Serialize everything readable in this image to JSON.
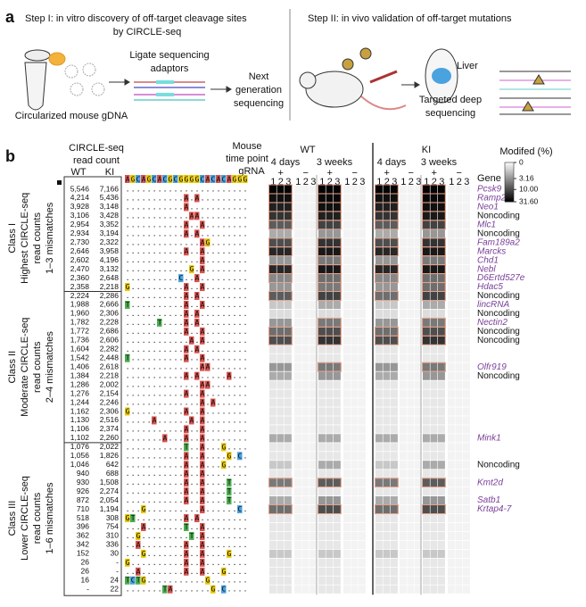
{
  "panel_a": {
    "label": "a",
    "step1_title": "Step I: in vitro discovery of off-target cleavage sites",
    "step1_title2": "by CIRCLE-seq",
    "ligate": "Ligate sequencing",
    "adaptors": "adaptors",
    "ngs1": "Next",
    "ngs2": "generation",
    "ngs3": "sequencing",
    "gdna": "Circularized mouse gDNA",
    "step2_title": "Step II: in vivo validation of off-target mutations",
    "liver": "Liver",
    "deep1": "Targeted deep",
    "deep2": "sequencing"
  },
  "panel_b": {
    "label": "b",
    "count_h1": "CIRCLE-seq",
    "count_h2": "read count",
    "wt": "WT",
    "ki": "KI",
    "mouse_h1": "Mouse",
    "mouse_h2": "time point",
    "grna_h": "gRNA",
    "reference": "AGCAGCACGCGGGGCACACAGGG",
    "gene_h": "Gene",
    "strains": [
      "WT",
      "KI"
    ],
    "timepoints": [
      "4 days",
      "3 weeks",
      "4 days",
      "3 weeks"
    ],
    "signs": [
      "+",
      "−",
      "+",
      "−",
      "+",
      "−",
      "+",
      "−"
    ],
    "replicates": [
      "1",
      "2",
      "3"
    ],
    "classes": [
      {
        "lines": [
          "Class I",
          "Highest CIRCLE-seq",
          "read counts",
          "1–3 mismatches"
        ],
        "from": 0,
        "to": 11
      },
      {
        "lines": [
          "Class II",
          "Moderate CIRCLE-seq",
          "read counts",
          "2–4 mismatches"
        ],
        "from": 12,
        "to": 28
      },
      {
        "lines": [
          "Class III",
          "Lower CIRCLE-seq",
          "read counts",
          "1–6 mismatches"
        ],
        "from": 29,
        "to": 45
      }
    ],
    "colorbar": {
      "title": "Modifed (%)",
      "ticks": [
        0,
        3.16,
        {
          "value": 10,
          "label": "10.00"
        },
        {
          "value": 31.6,
          "label": "31.60"
        }
      ]
    },
    "wt_counts": [
      "5,546",
      "4,214",
      "3,928",
      "3,106",
      "2,954",
      "2,934",
      "2,730",
      "2,646",
      "2,602",
      "2,470",
      "2,360",
      "2,358",
      "2,224",
      "1,988",
      "1,960",
      "1,782",
      "1,772",
      "1,736",
      "1,604",
      "1,542",
      "1,406",
      "1,384",
      "1,286",
      "1,276",
      "1,244",
      "1,162",
      "1,130",
      "1,106",
      "1,102",
      "1,076",
      "1,056",
      "1,046",
      "940",
      "930",
      "926",
      "872",
      "710",
      "518",
      "396",
      "362",
      "342",
      "152",
      "26",
      "26",
      "16",
      "-"
    ],
    "ki_counts": [
      "7,166",
      "5,436",
      "3,148",
      "3,428",
      "3,352",
      "3,194",
      "2,322",
      "3,958",
      "4,196",
      "3,132",
      "2,648",
      "2,218",
      "2,286",
      "2,666",
      "2,306",
      "2,228",
      "2,686",
      "2,606",
      "2,282",
      "2,448",
      "2,618",
      "2,218",
      "2,002",
      "2,154",
      "2,246",
      "2,306",
      "2,516",
      "2,374",
      "2,260",
      "2,022",
      "1,826",
      "642",
      "688",
      "1,508",
      "2,274",
      "2,054",
      "1,194",
      "308",
      "754",
      "310",
      "336",
      "30",
      "-",
      "-",
      "24",
      "22"
    ],
    "sequences": [
      ".......................",
      "...........A.A.........",
      "...........A...........",
      "............AA.........",
      "...........A..A........",
      "...........A.A.........",
      "..............AG.......",
      "...........A..A........",
      "..............A........",
      "............G.A........",
      "..........C..A.........",
      "G..........A..A........",
      "...........A.A.........",
      "T..........A..A........",
      "...........A.A.........",
      "......T....A.A.........",
      "...........A..A........",
      "............A.A........",
      "...........A.A.........",
      "T..........A..A........",
      "..............AA.......",
      "...........A.A.....A...",
      "..............AA.......",
      "...........A..A........",
      "..............A.A......",
      "G..........A..A........",
      ".....A......A.A........",
      "...........A..A........",
      ".......A...A..A........",
      "...........T..A...G....",
      "...........A..A....G.C.",
      "...........A..A...G....",
      "...........A..A........",
      "...........A..A....T...",
      "...........A..A....T...",
      "...........A..A....T...",
      "...G..........A......C.",
      "GT.........A.A.........",
      "...A.......T..A........",
      "..G.........T.A........",
      "..A........A..A........",
      "...G.......A..A....G...",
      "G..........A..A........",
      "..A........A..A...G....",
      "TCTG...........G.......",
      ".......TA.......G.C...."
    ],
    "genes": [
      "Pcsk9",
      "Ramp2",
      "Neo1",
      "Noncoding",
      "Mlc1",
      "Noncoding",
      "Fam189a2",
      "Marcks",
      "Chd1",
      "Nebl",
      "D6Ertd527e",
      "Hdac5",
      "Noncoding",
      "lincRNA",
      "Noncoding",
      "Nectin2",
      "Noncoding",
      "Noncoding",
      null,
      null,
      "Olfr919",
      "Noncoding",
      null,
      null,
      null,
      null,
      null,
      null,
      "Mink1",
      null,
      null,
      "Noncoding",
      null,
      "Kmt2d",
      null,
      "Satb1",
      "Krtap4-7",
      null,
      null,
      null,
      null,
      null,
      null,
      null,
      null,
      null
    ],
    "modified": [
      [
        30,
        30,
        30,
        30
      ],
      [
        25,
        28,
        25,
        28
      ],
      [
        20,
        25,
        20,
        25
      ],
      [
        15,
        20,
        15,
        22
      ],
      [
        8,
        12,
        8,
        12
      ],
      [
        2,
        3,
        2,
        3
      ],
      [
        10,
        15,
        10,
        15
      ],
      [
        18,
        22,
        18,
        22
      ],
      [
        3,
        5,
        3,
        5
      ],
      [
        18,
        22,
        18,
        22
      ],
      [
        4,
        6,
        4,
        6
      ],
      [
        3,
        5,
        3,
        6
      ],
      [
        8,
        12,
        6,
        12
      ],
      [
        1,
        2,
        1,
        2
      ],
      [
        0.5,
        0.5,
        0.5,
        0.5
      ],
      [
        3,
        5,
        3,
        5
      ],
      [
        6,
        10,
        6,
        10
      ],
      [
        10,
        15,
        10,
        15
      ],
      [
        0.3,
        0.3,
        0.3,
        0.3
      ],
      [
        0.3,
        0.3,
        0.3,
        0.3
      ],
      [
        3,
        5,
        3,
        5
      ],
      [
        2,
        3,
        2,
        3
      ],
      [
        0.3,
        0.3,
        0.3,
        0.3
      ],
      [
        0.3,
        0.3,
        0.3,
        0.3
      ],
      [
        0.3,
        0.3,
        0.3,
        0.3
      ],
      [
        0.3,
        0.3,
        0.3,
        0.3
      ],
      [
        0.3,
        0.3,
        0.3,
        0.3
      ],
      [
        0.3,
        0.3,
        0.3,
        0.3
      ],
      [
        2,
        2,
        2,
        2
      ],
      [
        0.3,
        0.3,
        0.3,
        0.3
      ],
      [
        0.3,
        0.3,
        0.3,
        0.3
      ],
      [
        1,
        2,
        1,
        2
      ],
      [
        0.3,
        0.3,
        0.3,
        0.3
      ],
      [
        5,
        8,
        5,
        8
      ],
      [
        0.3,
        0.3,
        0.3,
        0.3
      ],
      [
        2,
        3,
        2,
        3
      ],
      [
        6,
        10,
        6,
        10
      ],
      [
        0.3,
        0.3,
        0.3,
        0.3
      ],
      [
        0.3,
        0.3,
        0.3,
        0.3
      ],
      [
        0.3,
        0.3,
        0.3,
        0.3
      ],
      [
        0.3,
        0.3,
        0.3,
        0.3
      ],
      [
        1,
        1,
        1,
        1
      ],
      [
        0.3,
        0.3,
        0.3,
        0.3
      ],
      [
        0.3,
        0.3,
        0.3,
        0.3
      ],
      [
        0.3,
        0.3,
        0.3,
        0.3
      ],
      [
        0.3,
        0.3,
        0.3,
        0.3
      ]
    ]
  }
}
